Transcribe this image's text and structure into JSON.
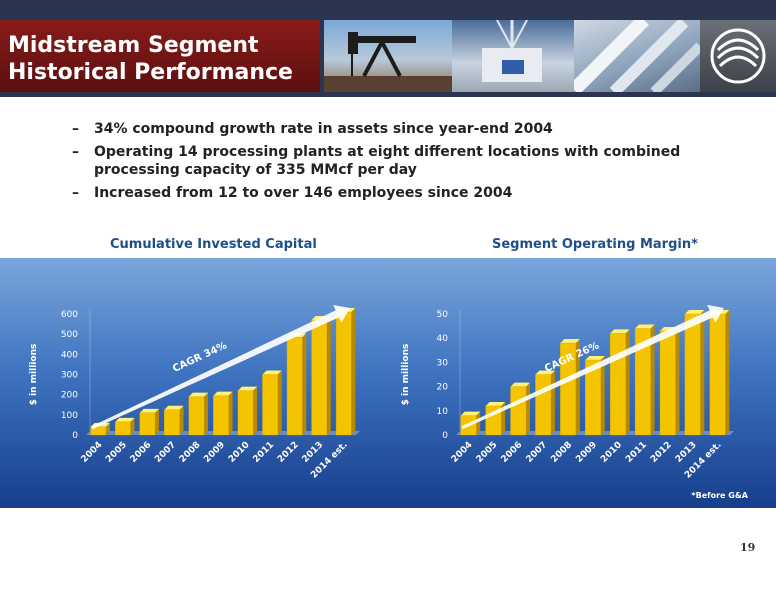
{
  "header": {
    "title_line1": "Midstream Segment",
    "title_line2": "Historical Performance",
    "logo_icon": "company-swirl-logo",
    "photos": [
      "oil-pumpjack-photo",
      "processing-plant-photo",
      "pipeline-photo"
    ]
  },
  "bullets": [
    {
      "dash": "–",
      "text": "34% compound growth rate in assets since year-end 2004"
    },
    {
      "dash": "–",
      "text": "Operating 14 processing plants at eight different locations with combined processing capacity of 335 MMcf per day"
    },
    {
      "dash": "–",
      "text": "Increased from 12 to over 146 employees since 2004"
    }
  ],
  "footnote": "*Before G&A",
  "page_number": "19",
  "colors": {
    "bar": "#f5c400",
    "bar_top": "#fff176",
    "bar_side": "#b88a00",
    "arrow": "#ffffff",
    "title": "#1f4f8a"
  },
  "chart_data": [
    {
      "type": "bar",
      "title": "Cumulative Invested Capital",
      "ylabel": "$ in millions",
      "categories": [
        "2004",
        "2005",
        "2006",
        "2007",
        "2008",
        "2009",
        "2010",
        "2011",
        "2012",
        "2013",
        "2014 est."
      ],
      "values": [
        40,
        65,
        110,
        125,
        190,
        195,
        220,
        300,
        485,
        570,
        610
      ],
      "ylim": [
        0,
        600
      ],
      "yticks": [
        0,
        100,
        200,
        300,
        400,
        500,
        600
      ],
      "annotation": "CAGR 34%",
      "grid": false
    },
    {
      "type": "bar",
      "title": "Segment Operating Margin*",
      "ylabel": "$ in millions",
      "categories": [
        "2004",
        "2005",
        "2006",
        "2007",
        "2008",
        "2009",
        "2010",
        "2011",
        "2012",
        "2013",
        "2014 est."
      ],
      "values": [
        8,
        12,
        20,
        25,
        38,
        31,
        42,
        44,
        43,
        50,
        50
      ],
      "ylim": [
        0,
        50
      ],
      "yticks": [
        0,
        10,
        20,
        30,
        40,
        50
      ],
      "annotation": "CAGR 26%",
      "grid": false
    }
  ]
}
